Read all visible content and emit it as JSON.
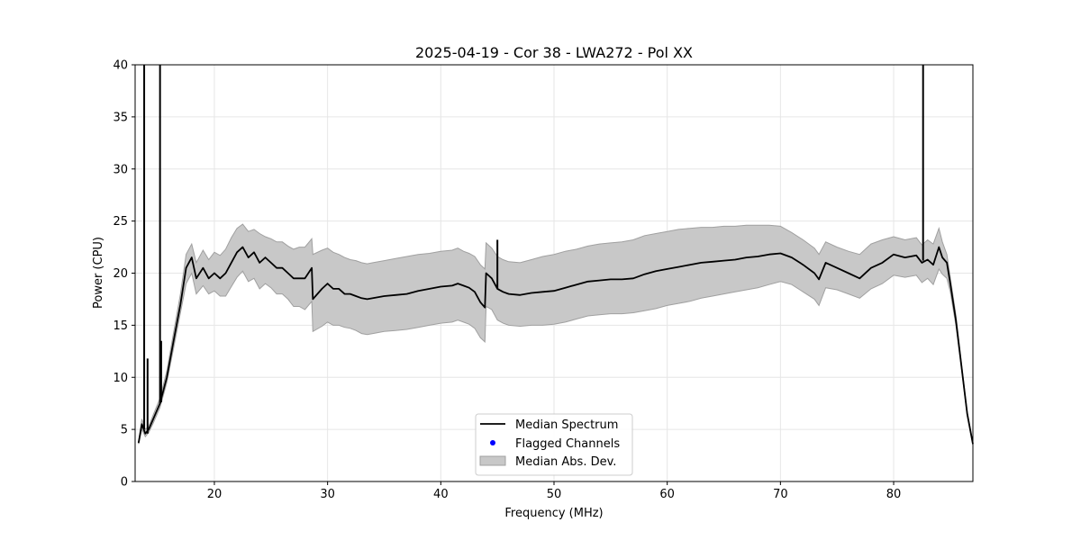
{
  "chart_data": {
    "type": "line",
    "title": "2025-04-19 - Cor 38 - LWA272 - Pol XX",
    "xlabel": "Frequency (MHz)",
    "ylabel": "Power (CPU)",
    "xlim": [
      13.0,
      87.0
    ],
    "ylim": [
      0,
      40
    ],
    "xticks": [
      20,
      30,
      40,
      50,
      60,
      70,
      80
    ],
    "yticks": [
      0,
      5,
      10,
      15,
      20,
      25,
      30,
      35,
      40
    ],
    "grid": true,
    "legend": {
      "placement": "bottom-center",
      "entries": [
        "Median Spectrum",
        "Flagged Channels",
        "Median Abs. Dev."
      ]
    },
    "colors": {
      "median": "#000000",
      "flagged": "#0000ff",
      "mad_fill": "#c8c8c8",
      "mad_edge": "#a0a0a0"
    },
    "series": [
      {
        "name": "Median Spectrum",
        "x": [
          13.3,
          13.6,
          13.9,
          14.2,
          14.6,
          15.2,
          15.8,
          16.4,
          17.0,
          17.5,
          18.0,
          18.4,
          19.0,
          19.5,
          20.0,
          20.5,
          21.0,
          21.5,
          22.0,
          22.5,
          23.0,
          23.5,
          24.0,
          24.5,
          25.0,
          25.5,
          26.0,
          26.5,
          27.0,
          27.5,
          28.0,
          28.6,
          28.7,
          29.5,
          30.0,
          30.5,
          31.0,
          31.5,
          32.0,
          32.5,
          33.0,
          33.5,
          34.0,
          35.0,
          36.0,
          37.0,
          38.0,
          39.0,
          40.0,
          41.0,
          41.5,
          42.0,
          42.5,
          43.0,
          43.5,
          43.9,
          44.0,
          44.5,
          45.0,
          45.5,
          46.0,
          47.0,
          48.0,
          49.0,
          50.0,
          51.0,
          52.0,
          53.0,
          54.0,
          55.0,
          56.0,
          57.0,
          58.0,
          59.0,
          60.0,
          61.0,
          62.0,
          63.0,
          64.0,
          65.0,
          66.0,
          67.0,
          68.0,
          69.0,
          70.0,
          71.0,
          72.0,
          73.0,
          73.4,
          74.0,
          75.0,
          76.0,
          77.0,
          78.0,
          79.0,
          80.0,
          81.0,
          82.0,
          82.5,
          83.0,
          83.5,
          84.0,
          84.3,
          84.7,
          85.0,
          85.5,
          86.0,
          86.5,
          87.0
        ],
        "values": [
          3.7,
          5.5,
          4.6,
          5.0,
          6.0,
          7.5,
          10.0,
          13.5,
          17.0,
          20.5,
          21.5,
          19.5,
          20.5,
          19.5,
          20.0,
          19.5,
          20.0,
          21.0,
          22.0,
          22.5,
          21.5,
          22.0,
          21.0,
          21.5,
          21.0,
          20.5,
          20.5,
          20.0,
          19.5,
          19.5,
          19.5,
          20.5,
          17.5,
          18.5,
          19.0,
          18.5,
          18.5,
          18.0,
          18.0,
          17.8,
          17.6,
          17.5,
          17.6,
          17.8,
          17.9,
          18.0,
          18.3,
          18.5,
          18.7,
          18.8,
          19.0,
          18.8,
          18.6,
          18.2,
          17.2,
          16.7,
          20.0,
          19.5,
          18.5,
          18.2,
          18.0,
          17.9,
          18.1,
          18.2,
          18.3,
          18.6,
          18.9,
          19.2,
          19.3,
          19.4,
          19.4,
          19.5,
          19.9,
          20.2,
          20.4,
          20.6,
          20.8,
          21.0,
          21.1,
          21.2,
          21.3,
          21.5,
          21.6,
          21.8,
          21.9,
          21.5,
          20.8,
          20.0,
          19.4,
          21.0,
          20.5,
          20.0,
          19.5,
          20.5,
          21.0,
          21.8,
          21.5,
          21.7,
          21.0,
          21.3,
          20.8,
          22.5,
          21.5,
          21.0,
          19.0,
          15.5,
          11.0,
          6.5,
          3.6
        ]
      },
      {
        "name": "Flagged Channels",
        "x": [],
        "values": []
      },
      {
        "name": "Median Abs. Dev.",
        "x": [
          13.3,
          13.6,
          13.9,
          14.2,
          14.6,
          15.2,
          15.8,
          16.4,
          17.0,
          17.5,
          18.0,
          18.4,
          19.0,
          19.5,
          20.0,
          20.5,
          21.0,
          21.5,
          22.0,
          22.5,
          23.0,
          23.5,
          24.0,
          24.5,
          25.0,
          25.5,
          26.0,
          26.5,
          27.0,
          27.5,
          28.0,
          28.6,
          28.7,
          29.5,
          30.0,
          30.5,
          31.0,
          31.5,
          32.0,
          32.5,
          33.0,
          33.5,
          34.0,
          35.0,
          36.0,
          37.0,
          38.0,
          39.0,
          40.0,
          41.0,
          41.5,
          42.0,
          42.5,
          43.0,
          43.5,
          43.9,
          44.0,
          44.5,
          45.0,
          45.5,
          46.0,
          47.0,
          48.0,
          49.0,
          50.0,
          51.0,
          52.0,
          53.0,
          54.0,
          55.0,
          56.0,
          57.0,
          58.0,
          59.0,
          60.0,
          61.0,
          62.0,
          63.0,
          64.0,
          65.0,
          66.0,
          67.0,
          68.0,
          69.0,
          70.0,
          71.0,
          72.0,
          73.0,
          73.4,
          74.0,
          75.0,
          76.0,
          77.0,
          78.0,
          79.0,
          80.0,
          81.0,
          82.0,
          82.5,
          83.0,
          83.5,
          84.0,
          84.3,
          84.7,
          85.0,
          85.5,
          86.0,
          86.5,
          87.0
        ],
        "upper": [
          3.8,
          6.0,
          5.0,
          5.3,
          6.4,
          8.0,
          10.6,
          14.3,
          18.0,
          21.8,
          22.8,
          21.0,
          22.2,
          21.3,
          22.0,
          21.7,
          22.3,
          23.4,
          24.3,
          24.7,
          24.0,
          24.2,
          23.8,
          23.5,
          23.3,
          23.0,
          23.0,
          22.6,
          22.3,
          22.5,
          22.5,
          23.3,
          21.8,
          22.2,
          22.4,
          22.0,
          21.8,
          21.5,
          21.3,
          21.2,
          21.0,
          20.9,
          21.0,
          21.2,
          21.4,
          21.6,
          21.8,
          21.9,
          22.1,
          22.2,
          22.4,
          22.1,
          21.9,
          21.6,
          20.8,
          20.4,
          22.9,
          22.4,
          21.6,
          21.3,
          21.1,
          21.0,
          21.3,
          21.6,
          21.8,
          22.1,
          22.3,
          22.6,
          22.8,
          22.9,
          23.0,
          23.2,
          23.6,
          23.8,
          24.0,
          24.2,
          24.3,
          24.4,
          24.4,
          24.5,
          24.5,
          24.6,
          24.6,
          24.6,
          24.5,
          23.9,
          23.2,
          22.4,
          21.8,
          23.0,
          22.5,
          22.1,
          21.8,
          22.8,
          23.2,
          23.5,
          23.2,
          23.4,
          22.7,
          23.2,
          22.8,
          24.3,
          23.0,
          21.8,
          19.6,
          16.0,
          11.3,
          6.7,
          3.7
        ],
        "lower": [
          3.6,
          5.0,
          4.3,
          4.7,
          5.6,
          7.1,
          9.5,
          12.8,
          16.2,
          19.0,
          20.0,
          18.0,
          18.8,
          18.0,
          18.3,
          17.8,
          17.8,
          18.7,
          19.6,
          20.2,
          19.2,
          19.5,
          18.5,
          19.0,
          18.6,
          18.0,
          18.0,
          17.5,
          16.8,
          16.8,
          16.5,
          17.3,
          14.4,
          14.9,
          15.3,
          15.0,
          15.0,
          14.8,
          14.7,
          14.5,
          14.2,
          14.1,
          14.2,
          14.4,
          14.5,
          14.6,
          14.8,
          15.0,
          15.2,
          15.3,
          15.5,
          15.3,
          15.1,
          14.7,
          13.8,
          13.4,
          16.8,
          16.5,
          15.5,
          15.2,
          15.0,
          14.9,
          15.0,
          15.0,
          15.1,
          15.3,
          15.6,
          15.9,
          16.0,
          16.1,
          16.1,
          16.2,
          16.4,
          16.6,
          16.9,
          17.1,
          17.3,
          17.6,
          17.8,
          18.0,
          18.2,
          18.4,
          18.6,
          18.9,
          19.2,
          18.9,
          18.2,
          17.5,
          16.9,
          18.6,
          18.4,
          18.0,
          17.6,
          18.5,
          19.0,
          19.8,
          19.6,
          19.8,
          19.1,
          19.5,
          18.9,
          20.4,
          19.9,
          19.5,
          18.2,
          15.0,
          10.7,
          6.3,
          3.5
        ]
      }
    ],
    "spikes": [
      {
        "x": 13.8,
        "top": 40,
        "base": 5.0
      },
      {
        "x": 14.1,
        "top": 11.8,
        "base": 4.6
      },
      {
        "x": 15.2,
        "top": 40,
        "base": 7.5
      },
      {
        "x": 15.3,
        "top": 13.5,
        "base": 7.6
      },
      {
        "x": 45.0,
        "top": 23.2,
        "base": 18.5
      },
      {
        "x": 82.6,
        "top": 40,
        "base": 21.2
      }
    ]
  }
}
